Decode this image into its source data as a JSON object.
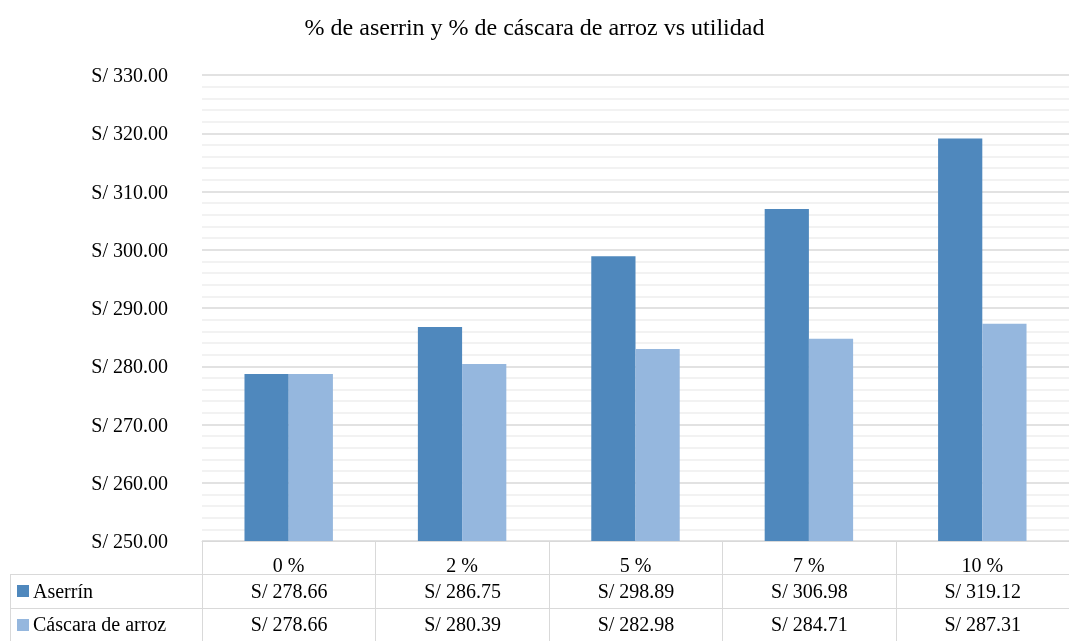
{
  "chart_data": {
    "type": "bar",
    "title": "% de aserrin y % de cáscara de arroz vs utilidad",
    "categories": [
      "0 %",
      "2 %",
      "5 %",
      "7 %",
      "10 %"
    ],
    "series": [
      {
        "name": "Aserrín",
        "color": "#4f88bd",
        "values": [
          278.66,
          286.75,
          298.89,
          306.98,
          319.12
        ],
        "value_labels": [
          "S/ 278.66",
          "S/ 286.75",
          "S/ 298.89",
          "S/ 306.98",
          "S/ 319.12"
        ]
      },
      {
        "name": "Cáscara de arroz",
        "color": "#95b7de",
        "values": [
          278.66,
          280.39,
          282.98,
          284.71,
          287.31
        ],
        "value_labels": [
          "S/ 278.66",
          "S/ 280.39",
          "S/ 282.98",
          "S/ 284.71",
          "S/ 287.31"
        ]
      }
    ],
    "ylim": [
      250,
      330
    ],
    "yticks": [
      {
        "value": 250,
        "label": "S/ 250.00"
      },
      {
        "value": 260,
        "label": "S/ 260.00"
      },
      {
        "value": 270,
        "label": "S/ 270.00"
      },
      {
        "value": 280,
        "label": "S/ 280.00"
      },
      {
        "value": 290,
        "label": "S/ 290.00"
      },
      {
        "value": 300,
        "label": "S/ 300.00"
      },
      {
        "value": 310,
        "label": "S/ 310.00"
      },
      {
        "value": 320,
        "label": "S/ 320.00"
      },
      {
        "value": 330,
        "label": "S/ 330.00"
      }
    ],
    "grid": true,
    "legend": "bottom"
  }
}
